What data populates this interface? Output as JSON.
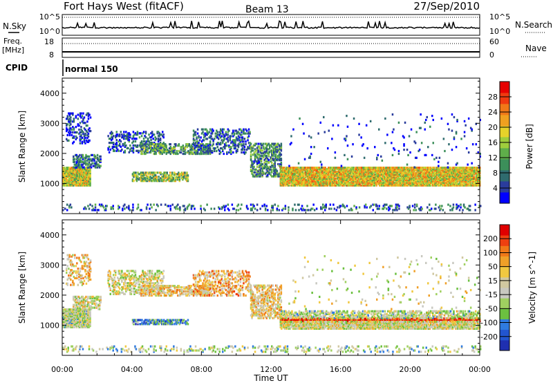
{
  "header": {
    "title": "Fort Hays West (fitACF)",
    "beam": "Beam 13",
    "date": "27/Sep/2010"
  },
  "status_panels": {
    "nsky_label": "N.Sky",
    "nsky_ticks": [
      "10^5",
      "10^0"
    ],
    "nsearch_label": "N.Search",
    "nsearch_ticks": [
      "10^5",
      "10^0"
    ],
    "freq_label_1": "Freq.",
    "freq_label_2": "[MHz]",
    "freq_ticks": [
      "18",
      "8"
    ],
    "nave_label": "Nave",
    "nave_ticks": [
      "60",
      "0"
    ],
    "cpid_label": "CPID",
    "cpid_value": "normal 150"
  },
  "x_axis": {
    "title": "Time UT",
    "ticks": [
      "00:00",
      "04:00",
      "08:00",
      "12:00",
      "16:00",
      "20:00",
      "00:00"
    ]
  },
  "power_colorbar": {
    "title": "Power [dB]",
    "ticks": [
      "28",
      "24",
      "20",
      "16",
      "12",
      "8",
      "4"
    ],
    "colors": [
      "#0000ff",
      "#2a3c9c",
      "#2f6b6e",
      "#3c8f5a",
      "#5fae4a",
      "#9fcd3c",
      "#e6d22a",
      "#f0a020",
      "#f07818",
      "#ef3a10",
      "#e60000"
    ]
  },
  "velocity_colorbar": {
    "title": "Velocity [m s^-1]",
    "ticks": [
      "200",
      "100",
      "50",
      "15",
      "-15",
      "-50",
      "-100",
      "-200"
    ],
    "colors": [
      "#1f2fb0",
      "#2255d0",
      "#2f7be0",
      "#6cc040",
      "#a0d060",
      "#c8c8c0",
      "#d0c8a0",
      "#f0c840",
      "#f0a028",
      "#f07818",
      "#ee4010",
      "#e00000"
    ]
  },
  "chart_data": [
    {
      "type": "heatmap",
      "title": "Power",
      "ylabel": "Slant Range [km]",
      "xlabel": "Time UT",
      "x_range_hours": [
        0,
        24
      ],
      "ylim": [
        0,
        4500
      ],
      "y_ticks": [
        1000,
        2000,
        3000,
        4000
      ],
      "colorbar": "power_colorbar",
      "regions": [
        {
          "t0": 0.0,
          "t1": 1.6,
          "r0": 900,
          "r1": 1500,
          "density": 0.95,
          "level": 0.55
        },
        {
          "t0": 0.6,
          "t1": 2.2,
          "r0": 1500,
          "r1": 1950,
          "density": 0.5,
          "level": 0.25
        },
        {
          "t0": 0.2,
          "t1": 1.6,
          "r0": 2300,
          "r1": 3300,
          "density": 0.25,
          "level": 0.1
        },
        {
          "t0": 2.6,
          "t1": 5.8,
          "r0": 2000,
          "r1": 2700,
          "density": 0.3,
          "level": 0.15
        },
        {
          "t0": 4.0,
          "t1": 7.2,
          "r0": 1050,
          "r1": 1350,
          "density": 0.55,
          "level": 0.45
        },
        {
          "t0": 4.5,
          "t1": 8.5,
          "r0": 1950,
          "r1": 2300,
          "density": 0.45,
          "level": 0.35
        },
        {
          "t0": 7.5,
          "t1": 10.8,
          "r0": 1950,
          "r1": 2800,
          "density": 0.3,
          "level": 0.2
        },
        {
          "t0": 10.8,
          "t1": 12.6,
          "r0": 1200,
          "r1": 2300,
          "density": 0.45,
          "level": 0.3
        },
        {
          "t0": 12.5,
          "t1": 24.0,
          "r0": 900,
          "r1": 1500,
          "density": 0.9,
          "level": 0.6
        },
        {
          "t0": 0.0,
          "t1": 24.0,
          "r0": 80,
          "r1": 300,
          "density": 0.15,
          "level": 0.2
        },
        {
          "t0": 13.0,
          "t1": 24.0,
          "r0": 1500,
          "r1": 3300,
          "density": 0.02,
          "level": 0.1
        }
      ]
    },
    {
      "type": "heatmap",
      "title": "Velocity",
      "ylabel": "Slant Range [km]",
      "xlabel": "Time UT",
      "x_range_hours": [
        0,
        24
      ],
      "ylim": [
        0,
        4500
      ],
      "y_ticks": [
        1000,
        2000,
        3000,
        4000
      ],
      "colorbar": "velocity_colorbar",
      "regions": [
        {
          "t0": 0.0,
          "t1": 1.6,
          "r0": 900,
          "r1": 1500,
          "density": 0.9,
          "level": 0.45
        },
        {
          "t0": 0.6,
          "t1": 2.2,
          "r0": 1500,
          "r1": 1950,
          "density": 0.5,
          "level": 0.5
        },
        {
          "t0": 0.2,
          "t1": 1.6,
          "r0": 2300,
          "r1": 3300,
          "density": 0.25,
          "level": 0.6
        },
        {
          "t0": 2.6,
          "t1": 5.8,
          "r0": 2000,
          "r1": 2800,
          "density": 0.35,
          "level": 0.5
        },
        {
          "t0": 4.0,
          "t1": 7.2,
          "r0": 1000,
          "r1": 1150,
          "density": 0.6,
          "level": 0.25
        },
        {
          "t0": 4.5,
          "t1": 8.5,
          "r0": 1950,
          "r1": 2300,
          "density": 0.45,
          "level": 0.6
        },
        {
          "t0": 7.5,
          "t1": 10.8,
          "r0": 1950,
          "r1": 2800,
          "density": 0.3,
          "level": 0.65
        },
        {
          "t0": 10.8,
          "t1": 12.6,
          "r0": 1200,
          "r1": 2300,
          "density": 0.45,
          "level": 0.6
        },
        {
          "t0": 12.5,
          "t1": 24.0,
          "r0": 1100,
          "r1": 1200,
          "density": 0.95,
          "level": 0.9
        },
        {
          "t0": 12.5,
          "t1": 24.0,
          "r0": 850,
          "r1": 1100,
          "density": 0.8,
          "level": 0.5
        },
        {
          "t0": 12.5,
          "t1": 24.0,
          "r0": 1200,
          "r1": 1450,
          "density": 0.5,
          "level": 0.45
        },
        {
          "t0": 0.0,
          "t1": 24.0,
          "r0": 80,
          "r1": 300,
          "density": 0.15,
          "level": 0.4
        },
        {
          "t0": 13.0,
          "t1": 24.0,
          "r0": 1500,
          "r1": 3300,
          "density": 0.02,
          "level": 0.5
        }
      ]
    }
  ]
}
